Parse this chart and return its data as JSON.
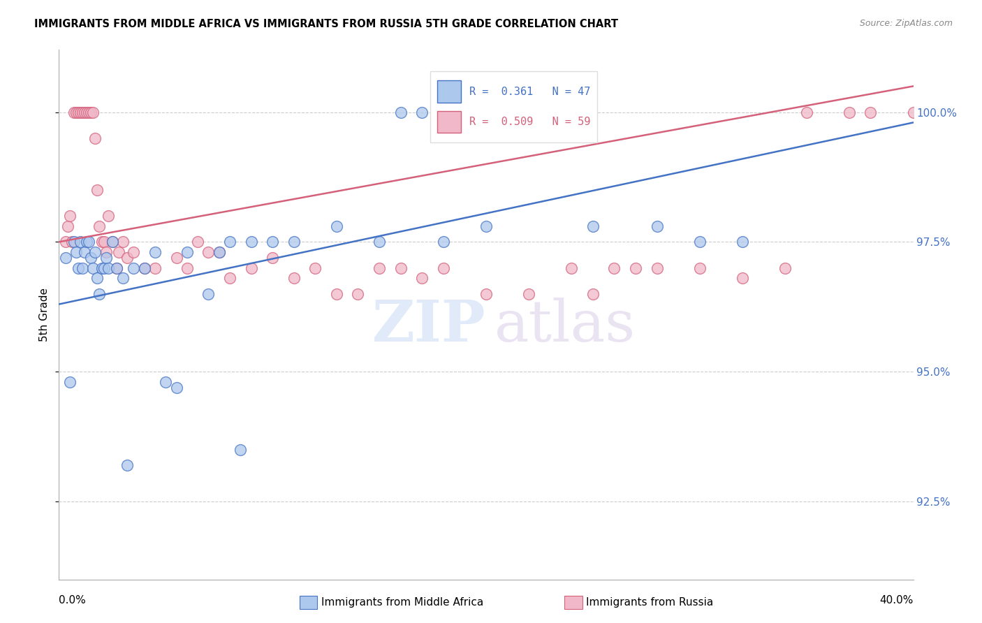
{
  "title": "IMMIGRANTS FROM MIDDLE AFRICA VS IMMIGRANTS FROM RUSSIA 5TH GRADE CORRELATION CHART",
  "source": "Source: ZipAtlas.com",
  "ylabel": "5th Grade",
  "yticks": [
    92.5,
    95.0,
    97.5,
    100.0
  ],
  "ytick_labels": [
    "92.5%",
    "95.0%",
    "97.5%",
    "100.0%"
  ],
  "xlim": [
    0.0,
    40.0
  ],
  "ylim": [
    91.0,
    101.2
  ],
  "blue_R": 0.361,
  "blue_N": 47,
  "pink_R": 0.509,
  "pink_N": 59,
  "blue_color": "#adc8ed",
  "pink_color": "#f0b8c8",
  "blue_line_color": "#4472c4",
  "pink_line_color": "#d4607a",
  "blue_scatter_x": [
    0.3,
    0.5,
    0.7,
    0.8,
    0.9,
    1.0,
    1.1,
    1.2,
    1.3,
    1.4,
    1.5,
    1.6,
    1.7,
    1.8,
    1.9,
    2.0,
    2.1,
    2.2,
    2.3,
    2.5,
    2.7,
    3.0,
    3.5,
    4.0,
    4.5,
    5.0,
    5.5,
    6.0,
    7.0,
    7.5,
    8.0,
    9.0,
    10.0,
    11.0,
    13.0,
    15.0,
    16.0,
    17.0,
    18.0,
    20.0,
    22.0,
    25.0,
    28.0,
    30.0,
    32.0,
    3.2,
    8.5
  ],
  "blue_scatter_y": [
    97.2,
    94.8,
    97.5,
    97.3,
    97.0,
    97.5,
    97.0,
    97.3,
    97.5,
    97.5,
    97.2,
    97.0,
    97.3,
    96.8,
    96.5,
    97.0,
    97.0,
    97.2,
    97.0,
    97.5,
    97.0,
    96.8,
    97.0,
    97.0,
    97.3,
    94.8,
    94.7,
    97.3,
    96.5,
    97.3,
    97.5,
    97.5,
    97.5,
    97.5,
    97.8,
    97.5,
    100.0,
    100.0,
    97.5,
    97.8,
    100.0,
    97.8,
    97.8,
    97.5,
    97.5,
    93.2,
    93.5
  ],
  "pink_scatter_x": [
    0.3,
    0.4,
    0.5,
    0.6,
    0.7,
    0.8,
    0.9,
    1.0,
    1.1,
    1.2,
    1.3,
    1.4,
    1.5,
    1.6,
    1.7,
    1.8,
    1.9,
    2.0,
    2.1,
    2.2,
    2.3,
    2.5,
    2.7,
    2.8,
    3.0,
    3.2,
    3.5,
    4.0,
    4.5,
    5.5,
    6.0,
    6.5,
    7.0,
    7.5,
    8.0,
    9.0,
    10.0,
    11.0,
    12.0,
    13.0,
    14.0,
    15.0,
    16.0,
    17.0,
    18.0,
    20.0,
    22.0,
    24.0,
    25.0,
    26.0,
    27.0,
    28.0,
    30.0,
    32.0,
    34.0,
    35.0,
    37.0,
    38.0,
    40.0
  ],
  "pink_scatter_y": [
    97.5,
    97.8,
    98.0,
    97.5,
    100.0,
    100.0,
    100.0,
    100.0,
    100.0,
    100.0,
    100.0,
    100.0,
    100.0,
    100.0,
    99.5,
    98.5,
    97.8,
    97.5,
    97.5,
    97.3,
    98.0,
    97.5,
    97.0,
    97.3,
    97.5,
    97.2,
    97.3,
    97.0,
    97.0,
    97.2,
    97.0,
    97.5,
    97.3,
    97.3,
    96.8,
    97.0,
    97.2,
    96.8,
    97.0,
    96.5,
    96.5,
    97.0,
    97.0,
    96.8,
    97.0,
    96.5,
    96.5,
    97.0,
    96.5,
    97.0,
    97.0,
    97.0,
    97.0,
    96.8,
    97.0,
    100.0,
    100.0,
    100.0,
    100.0
  ]
}
